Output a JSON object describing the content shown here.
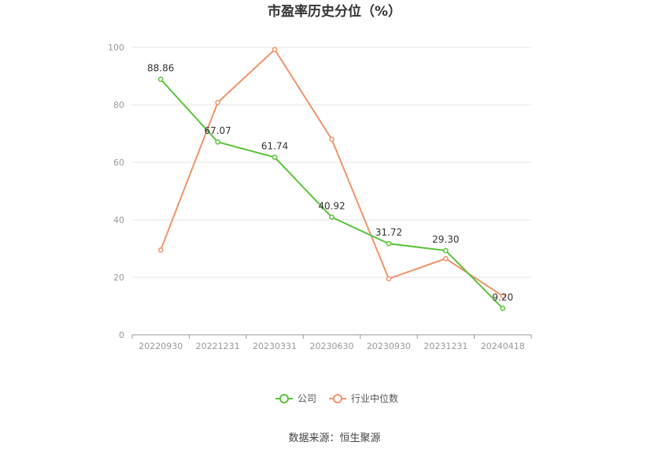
{
  "chart_data": {
    "type": "line",
    "title": "市盈率历史分位（%）",
    "categories": [
      "20220930",
      "20221231",
      "20230331",
      "20230630",
      "20230930",
      "20231231",
      "20240418"
    ],
    "ylim": [
      0,
      100
    ],
    "yticks": [
      0,
      20,
      40,
      60,
      80,
      100
    ],
    "grid": true,
    "legend_position": "bottom",
    "series": [
      {
        "name": "公司",
        "color": "#5ac43a",
        "values": [
          88.86,
          67.07,
          61.74,
          40.92,
          31.72,
          29.3,
          9.2
        ],
        "labels": [
          "88.86",
          "67.07",
          "61.74",
          "40.92",
          "31.72",
          "29.30",
          "9.20"
        ]
      },
      {
        "name": "行业中位数",
        "color": "#f0936a",
        "values": [
          29.5,
          80.8,
          99.2,
          68.0,
          19.5,
          26.5,
          13.5
        ]
      }
    ]
  },
  "source": "数据来源：恒生聚源"
}
